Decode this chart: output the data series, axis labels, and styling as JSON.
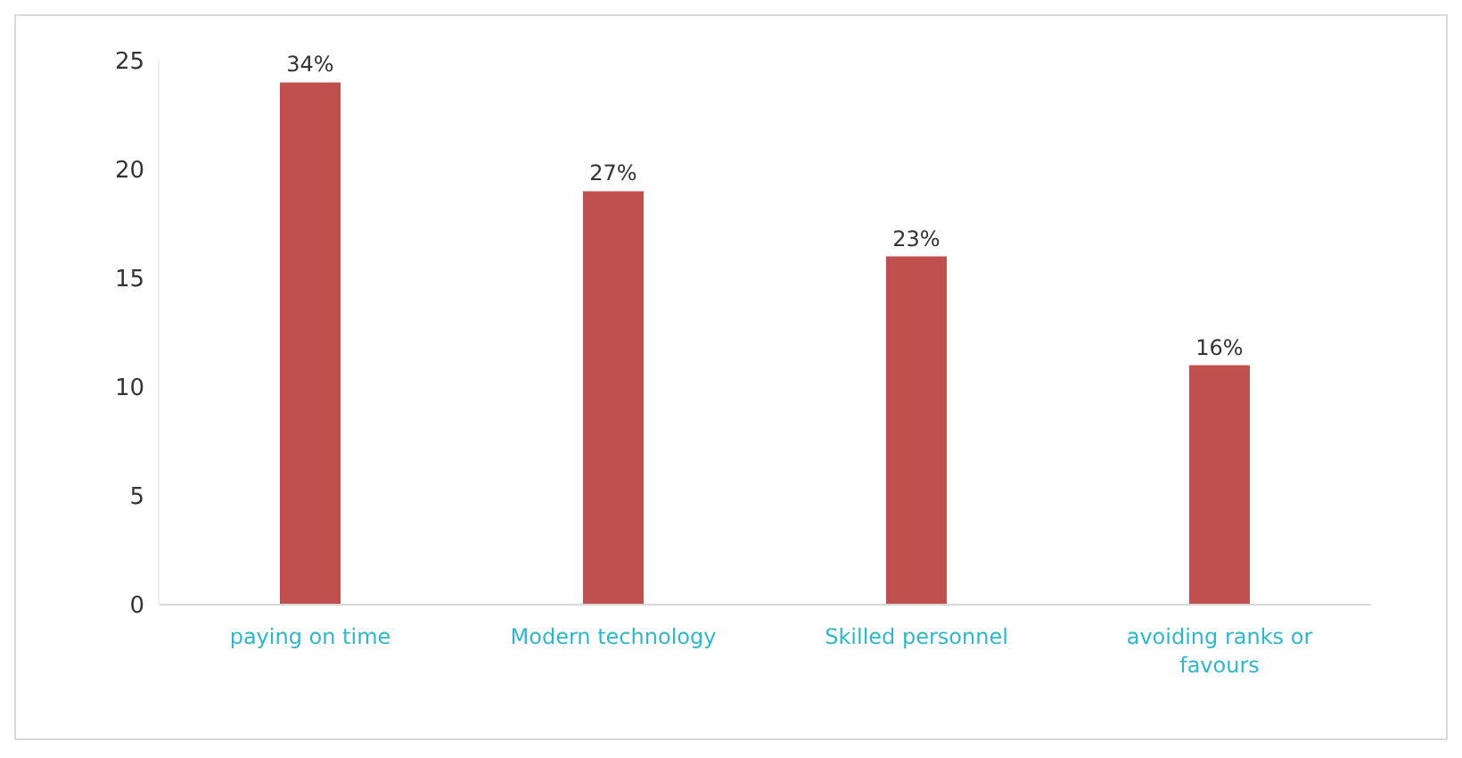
{
  "chart_data": {
    "type": "bar",
    "categories": [
      "paying on time",
      "Modern technology",
      "Skilled personnel",
      "avoiding ranks or favours"
    ],
    "values": [
      24,
      19,
      16,
      11
    ],
    "color": "#c0504d",
    "annotations": [
      {
        "text": "34%",
        "x": "paying on time",
        "y": 24
      },
      {
        "text": "27%",
        "x": "Modern technology",
        "y": 19
      },
      {
        "text": "23%",
        "x": "Skilled personnel",
        "y": 16
      },
      {
        "text": "16%",
        "x": "avoiding ranks or favours",
        "y": 11
      }
    ],
    "ylim": [
      0,
      25
    ],
    "yticks": [
      0,
      5,
      10,
      15,
      20,
      25
    ],
    "grid": false,
    "legend": false
  }
}
